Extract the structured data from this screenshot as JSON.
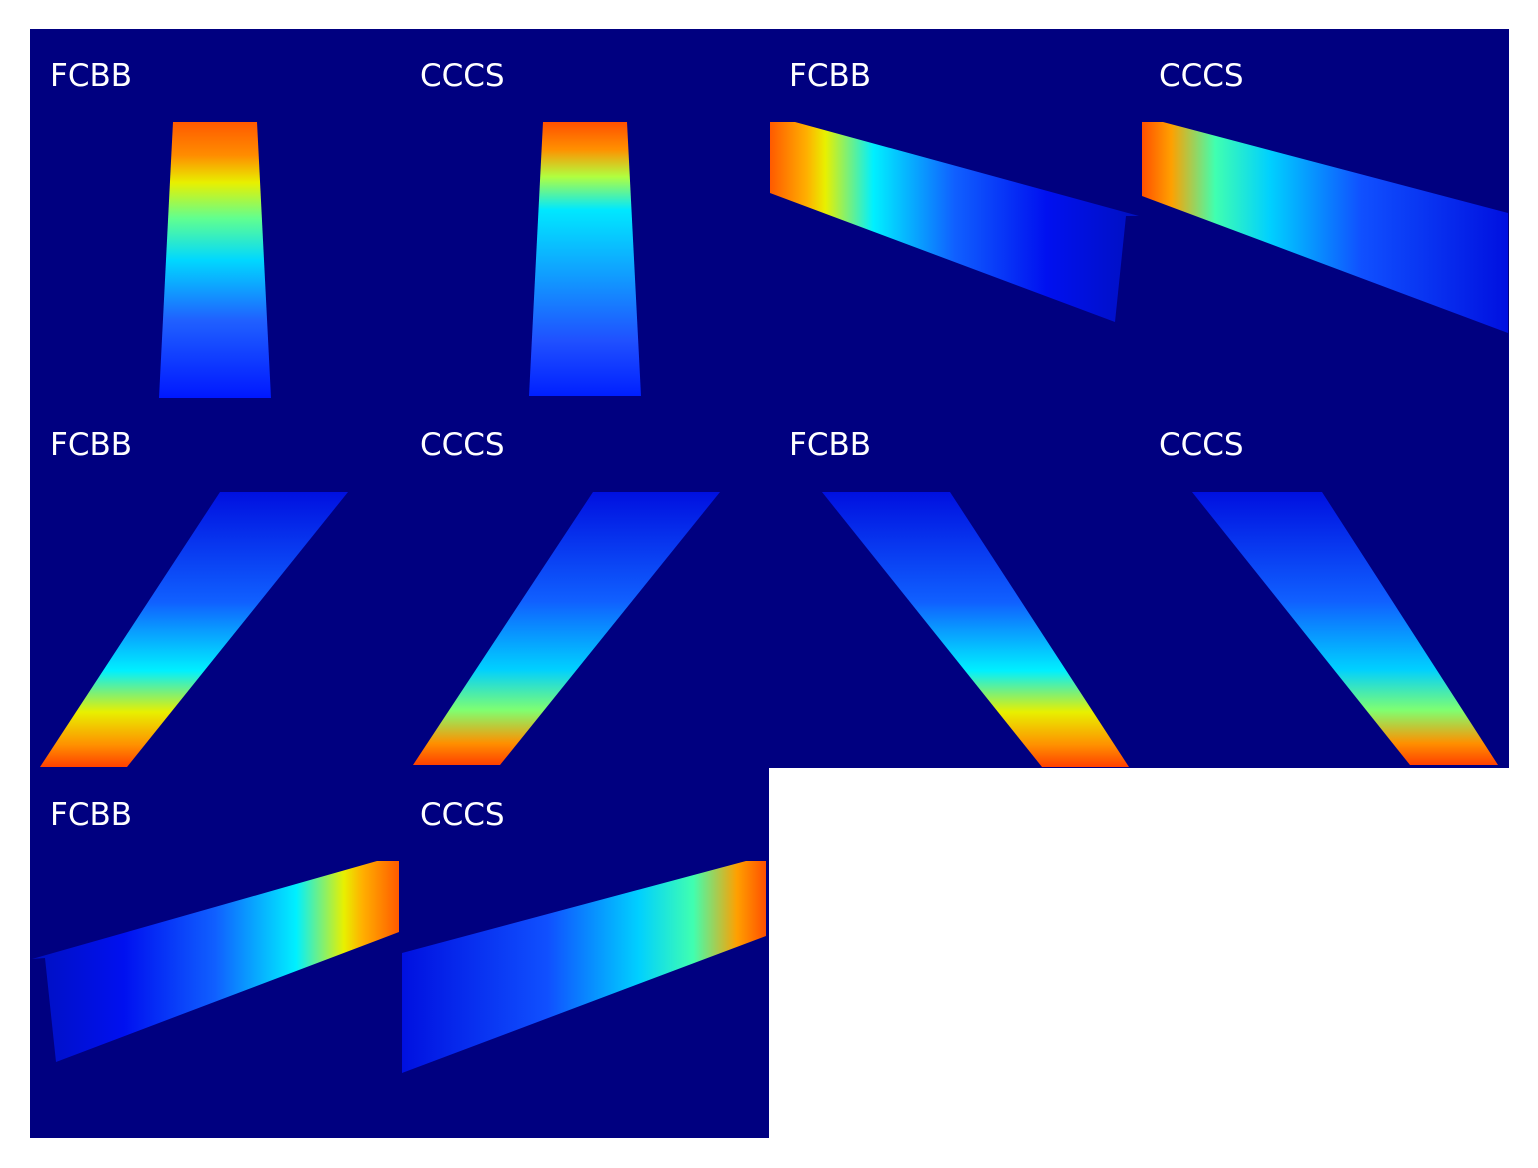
{
  "figure": {
    "background_color": "#000080",
    "colormap": [
      "#0000ff",
      "#00ffff",
      "#ffff00",
      "#ff4000"
    ],
    "panels": [
      {
        "label": "FCBB",
        "method": "FCBB",
        "beam": "up",
        "hot_end": "top"
      },
      {
        "label": "CCCS",
        "method": "CCCS",
        "beam": "up",
        "hot_end": "top"
      },
      {
        "label": "FCBB",
        "method": "FCBB",
        "beam": "right",
        "hot_end": "left"
      },
      {
        "label": "CCCS",
        "method": "CCCS",
        "beam": "right",
        "hot_end": "left"
      },
      {
        "label": "FCBB",
        "method": "FCBB",
        "beam": "diag-up-right",
        "hot_end": "bottom"
      },
      {
        "label": "CCCS",
        "method": "CCCS",
        "beam": "diag-up-right",
        "hot_end": "bottom"
      },
      {
        "label": "FCBB",
        "method": "FCBB",
        "beam": "diag-up-left",
        "hot_end": "bottom"
      },
      {
        "label": "CCCS",
        "method": "CCCS",
        "beam": "diag-up-left",
        "hot_end": "bottom"
      },
      {
        "label": "FCBB",
        "method": "FCBB",
        "beam": "left",
        "hot_end": "right"
      },
      {
        "label": "CCCS",
        "method": "CCCS",
        "beam": "left",
        "hot_end": "right"
      }
    ]
  }
}
